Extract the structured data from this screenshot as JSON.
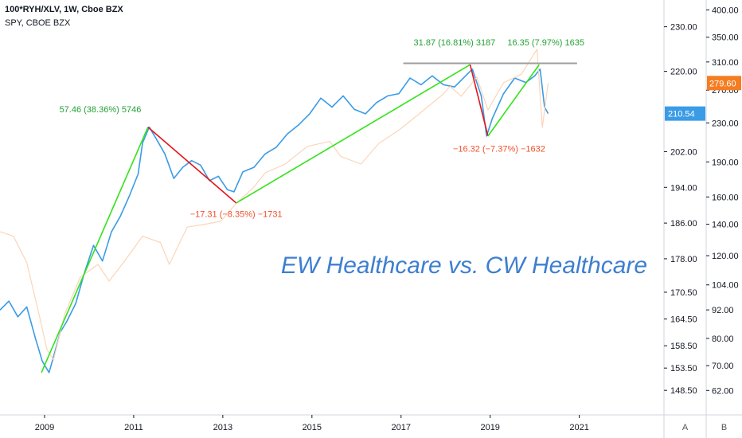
{
  "legend": {
    "line1": "100*RYH/XLV, 1W, Cboe BZX",
    "line2": "SPY, CBOE BZX"
  },
  "title_annotation": "EW Healthcare vs. CW Healthcare",
  "scale_buttons": {
    "a": "A",
    "b": "B"
  },
  "colors": {
    "ratio_line": "#3a9be6",
    "spy_line": "#fcd5b8",
    "up_trend": "#33e31a",
    "down_trend": "#e8131a",
    "resistance": "#9e9e9e",
    "up_text": "#23a235",
    "down_text": "#f2502a",
    "ratio_tag": "#3a9be6",
    "spy_tag": "#f57c20",
    "title": "#3d7fd0"
  },
  "chart_data": {
    "type": "line",
    "x_axis": {
      "ticks": [
        "2009",
        "2011",
        "2013",
        "2015",
        "2017",
        "2019",
        "2021"
      ],
      "range": [
        2008.0,
        2022.9
      ]
    },
    "y_axis_left": {
      "ticks": [
        "230.00",
        "220.00",
        "210.54",
        "202.00",
        "194.00",
        "186.00",
        "178.00",
        "170.50",
        "164.50",
        "158.50",
        "153.50",
        "148.50"
      ],
      "range": [
        143.0,
        236.0
      ]
    },
    "y_axis_right": {
      "ticks": [
        "400.00",
        "350.00",
        "310.00",
        "270.00",
        "230.00",
        "190.00",
        "160.00",
        "140.00",
        "120.00",
        "104.00",
        "92.00",
        "80.00",
        "70.00",
        "62.00"
      ],
      "scale": "log",
      "range": [
        55,
        420
      ]
    },
    "series": [
      {
        "name": "100*RYH/XLV",
        "axis": "left",
        "last_value": "210.54",
        "points": [
          [
            2008.0,
            166.5
          ],
          [
            2008.2,
            168.5
          ],
          [
            2008.4,
            165.0
          ],
          [
            2008.6,
            167.2
          ],
          [
            2008.8,
            160.0
          ],
          [
            2008.95,
            155.0
          ],
          [
            2009.1,
            152.5
          ],
          [
            2009.2,
            156.0
          ],
          [
            2009.35,
            161.5
          ],
          [
            2009.5,
            164.0
          ],
          [
            2009.7,
            168.0
          ],
          [
            2009.9,
            175.0
          ],
          [
            2010.1,
            181.0
          ],
          [
            2010.3,
            177.5
          ],
          [
            2010.5,
            184.0
          ],
          [
            2010.7,
            187.5
          ],
          [
            2010.9,
            192.0
          ],
          [
            2011.1,
            197.0
          ],
          [
            2011.2,
            204.0
          ],
          [
            2011.35,
            207.5
          ],
          [
            2011.5,
            205.0
          ],
          [
            2011.7,
            201.5
          ],
          [
            2011.9,
            196.0
          ],
          [
            2012.1,
            198.5
          ],
          [
            2012.3,
            200.0
          ],
          [
            2012.5,
            199.0
          ],
          [
            2012.7,
            195.5
          ],
          [
            2012.9,
            196.5
          ],
          [
            2013.1,
            193.5
          ],
          [
            2013.25,
            193.0
          ],
          [
            2013.45,
            197.5
          ],
          [
            2013.7,
            198.5
          ],
          [
            2013.95,
            201.5
          ],
          [
            2014.2,
            203.0
          ],
          [
            2014.45,
            206.0
          ],
          [
            2014.7,
            208.0
          ],
          [
            2014.95,
            210.5
          ],
          [
            2015.2,
            214.0
          ],
          [
            2015.45,
            212.0
          ],
          [
            2015.7,
            214.5
          ],
          [
            2015.95,
            211.5
          ],
          [
            2016.2,
            210.5
          ],
          [
            2016.45,
            213.0
          ],
          [
            2016.7,
            214.5
          ],
          [
            2016.95,
            215.0
          ],
          [
            2017.2,
            218.5
          ],
          [
            2017.45,
            217.0
          ],
          [
            2017.7,
            219.0
          ],
          [
            2017.95,
            217.0
          ],
          [
            2018.2,
            216.5
          ],
          [
            2018.45,
            219.0
          ],
          [
            2018.6,
            220.5
          ],
          [
            2018.8,
            214.5
          ],
          [
            2018.92,
            205.5
          ],
          [
            2019.05,
            209.5
          ],
          [
            2019.3,
            215.0
          ],
          [
            2019.55,
            218.5
          ],
          [
            2019.8,
            217.5
          ],
          [
            2020.0,
            219.0
          ],
          [
            2020.12,
            220.5
          ],
          [
            2020.22,
            212.0
          ],
          [
            2020.3,
            210.54
          ]
        ]
      },
      {
        "name": "SPY",
        "axis": "right",
        "last_value": "279.60",
        "points": [
          [
            2008.0,
            135
          ],
          [
            2008.3,
            132
          ],
          [
            2008.6,
            116
          ],
          [
            2008.9,
            88
          ],
          [
            2009.05,
            76
          ],
          [
            2009.2,
            72
          ],
          [
            2009.45,
            90
          ],
          [
            2009.8,
            108
          ],
          [
            2010.2,
            115
          ],
          [
            2010.45,
            106
          ],
          [
            2010.8,
            117
          ],
          [
            2011.2,
            132
          ],
          [
            2011.6,
            128
          ],
          [
            2011.8,
            115
          ],
          [
            2012.2,
            138
          ],
          [
            2012.6,
            140
          ],
          [
            2012.95,
            142
          ],
          [
            2013.3,
            155
          ],
          [
            2013.7,
            168
          ],
          [
            2013.95,
            180
          ],
          [
            2014.4,
            188
          ],
          [
            2014.9,
            205
          ],
          [
            2015.4,
            210
          ],
          [
            2015.65,
            195
          ],
          [
            2016.1,
            188
          ],
          [
            2016.5,
            208
          ],
          [
            2016.95,
            222
          ],
          [
            2017.4,
            240
          ],
          [
            2017.95,
            265
          ],
          [
            2018.1,
            275
          ],
          [
            2018.35,
            262
          ],
          [
            2018.7,
            288
          ],
          [
            2018.95,
            245
          ],
          [
            2019.3,
            280
          ],
          [
            2019.7,
            292
          ],
          [
            2020.05,
            330
          ],
          [
            2020.17,
            225
          ],
          [
            2020.3,
            279.6
          ]
        ]
      }
    ],
    "trend_lines": [
      {
        "direction": "up",
        "from": [
          2008.93,
          152.5
        ],
        "to": [
          2011.32,
          207.5
        ]
      },
      {
        "direction": "down",
        "from": [
          2011.32,
          207.5
        ],
        "to": [
          2013.3,
          190.5
        ]
      },
      {
        "direction": "up",
        "from": [
          2013.3,
          190.5
        ],
        "to": [
          2018.55,
          221.5
        ]
      },
      {
        "direction": "down",
        "from": [
          2018.55,
          221.5
        ],
        "to": [
          2018.95,
          205.5
        ]
      },
      {
        "direction": "up",
        "from": [
          2018.95,
          205.5
        ],
        "to": [
          2020.1,
          221.5
        ]
      }
    ],
    "resistance_line": {
      "y": 221.8,
      "x_from": 2017.05,
      "x_to": 2020.95
    },
    "annotations": [
      {
        "text": "57.46 (38.36%) 5746",
        "kind": "up",
        "x": 2010.25,
        "y": 210.8
      },
      {
        "text": "−17.31 (−8.35%) −1731",
        "kind": "down",
        "x": 2013.3,
        "y": 187.4
      },
      {
        "text": "31.87 (16.81%) 3187",
        "kind": "up",
        "x": 2018.2,
        "y": 225.8
      },
      {
        "text": "16.35 (7.97%) 1635",
        "kind": "up",
        "x": 2020.25,
        "y": 225.8
      },
      {
        "text": "−16.32 (−7.37%) −1632",
        "kind": "down",
        "x": 2019.2,
        "y": 202.0
      }
    ]
  }
}
